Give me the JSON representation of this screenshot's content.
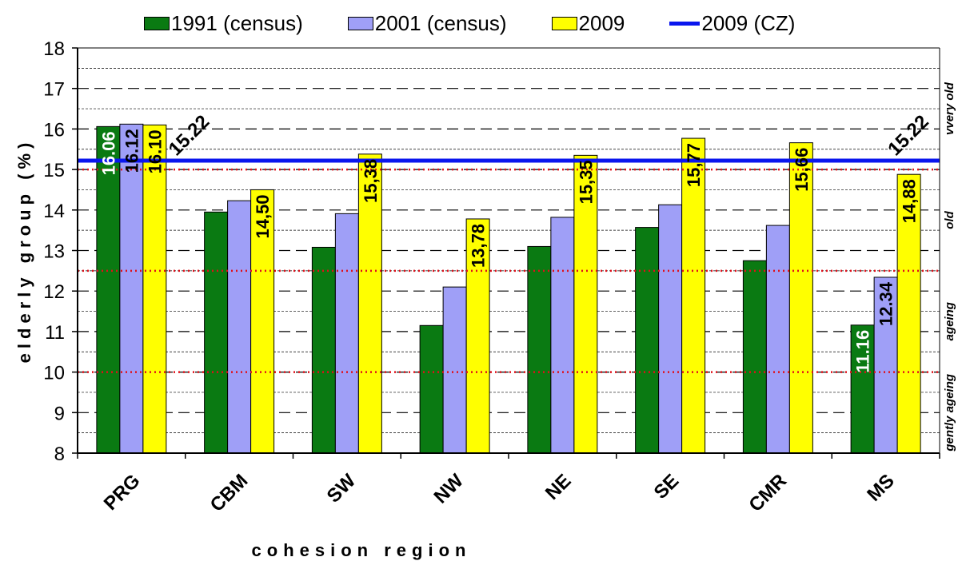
{
  "legend": [
    {
      "label": "1991 (census)",
      "color": "#0a7a12",
      "kind": "bar"
    },
    {
      "label": "2001 (census)",
      "color": "#9f9ff7",
      "kind": "bar"
    },
    {
      "label": "2009",
      "color": "#ffff00",
      "kind": "bar"
    },
    {
      "label": "2009 (CZ)",
      "color": "#0a16ee",
      "kind": "line"
    }
  ],
  "chart_data": {
    "type": "bar",
    "title": "",
    "xlabel": "cohesion region",
    "ylabel": "elderly group (%)",
    "ylim": [
      8,
      18
    ],
    "yticks": [
      8,
      9,
      10,
      11,
      12,
      13,
      14,
      15,
      16,
      17,
      18
    ],
    "categories": [
      "PRG",
      "CBM",
      "SW",
      "NW",
      "NE",
      "SE",
      "CMR",
      "MS"
    ],
    "series": [
      {
        "name": "1991 (census)",
        "color": "#0a7a12",
        "values": [
          16.06,
          13.95,
          13.08,
          11.15,
          13.1,
          13.57,
          12.75,
          11.16
        ],
        "labels": [
          "16.06",
          "",
          "",
          "",
          "",
          "",
          "",
          "11.16"
        ]
      },
      {
        "name": "2001 (census)",
        "color": "#9f9ff7",
        "values": [
          16.12,
          14.23,
          13.91,
          12.1,
          13.82,
          14.13,
          13.62,
          12.34
        ],
        "labels": [
          "16.12",
          "",
          "",
          "",
          "",
          "",
          "",
          "12.34"
        ]
      },
      {
        "name": "2009",
        "color": "#ffff00",
        "values": [
          16.1,
          14.5,
          15.38,
          13.78,
          15.35,
          15.77,
          15.66,
          14.88
        ],
        "labels": [
          "16.10",
          "14,50",
          "15,38",
          "13,78",
          "15,35",
          "15,77",
          "15,66",
          "14,88"
        ]
      }
    ],
    "reference_line": {
      "name": "2009 (CZ)",
      "value": 15.22,
      "label": "15.22",
      "color": "#0a16ee"
    },
    "threshold_lines": [
      10,
      12.5,
      15
    ],
    "category_bands": [
      {
        "label": "gently ageing",
        "from": 8,
        "to": 10
      },
      {
        "label": "ageing",
        "from": 10,
        "to": 12.5
      },
      {
        "label": "old",
        "from": 12.5,
        "to": 15
      },
      {
        "label": "vvery old",
        "from": 15,
        "to": 18
      }
    ],
    "grid": true
  }
}
